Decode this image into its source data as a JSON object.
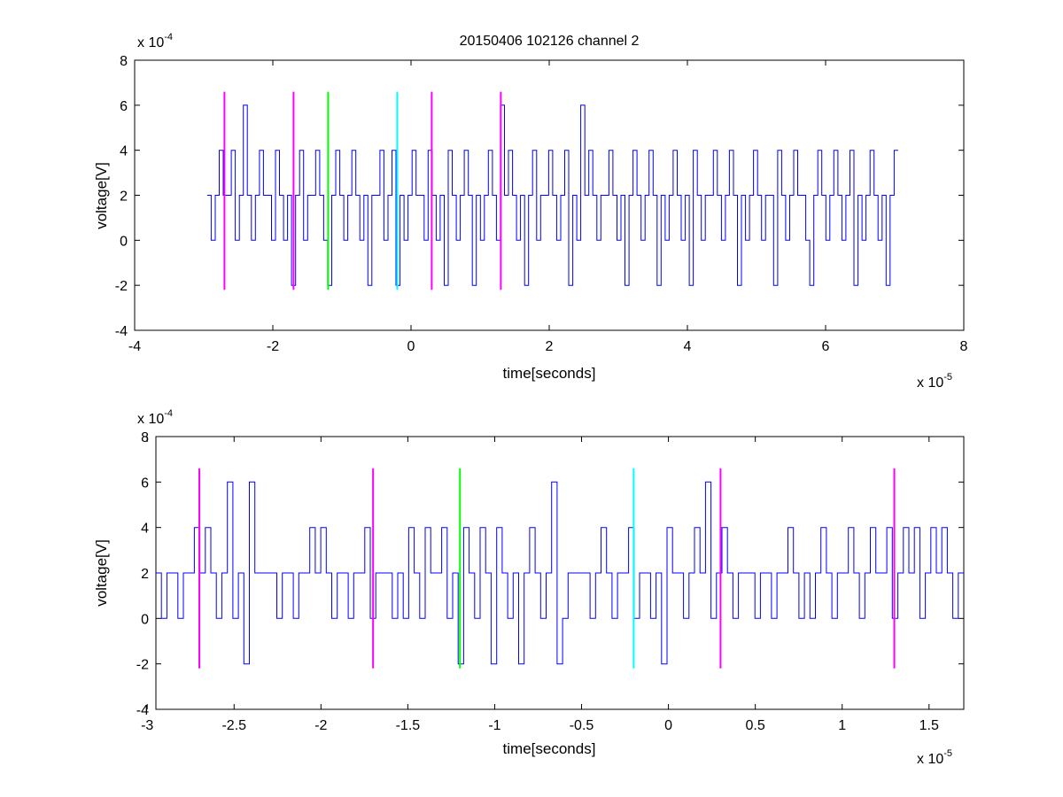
{
  "title": "20150406 102126 channel 2",
  "colors": {
    "signal": "#0000FF",
    "magenta": "#FF00FF",
    "green": "#00FF00",
    "cyan": "#00FFFF"
  },
  "chart_data": [
    {
      "type": "line",
      "xlabel": "time[seconds]",
      "ylabel": "voltage[V]",
      "x_multiplier_label": "x 10",
      "x_multiplier_exponent": "-5",
      "y_multiplier_label": "x 10",
      "y_multiplier_exponent": "-4",
      "xlim": [
        -4,
        8
      ],
      "ylim": [
        -4,
        8
      ],
      "grid": false,
      "xticks": [
        -4,
        -2,
        0,
        2,
        4,
        6,
        8
      ],
      "xtick_labels": [
        "-4",
        "-2",
        "0",
        "2",
        "4",
        "6",
        "8"
      ],
      "yticks": [
        -4,
        -2,
        0,
        2,
        4,
        6,
        8
      ],
      "ytick_labels": [
        "-4",
        "-2",
        "0",
        "2",
        "4",
        "6",
        "8"
      ],
      "series": [
        {
          "color": "#0000FF",
          "note_units": "x in 1e-5 s, y in 1e-4 V",
          "x_start": -2.95,
          "x_end": 7.05,
          "levels": [
            -2,
            0,
            2,
            4,
            6
          ],
          "values": [
            2,
            0,
            2,
            4,
            2,
            2,
            4,
            0,
            2,
            6,
            2,
            0,
            2,
            4,
            2,
            2,
            0,
            4,
            2,
            0,
            2,
            -2,
            2,
            4,
            0,
            2,
            2,
            4,
            2,
            0,
            -2,
            2,
            4,
            2,
            0,
            2,
            4,
            2,
            0,
            2,
            -2,
            2,
            2,
            4,
            0,
            2,
            4,
            -2,
            2,
            0,
            2,
            4,
            2,
            2,
            0,
            4,
            2,
            0,
            2,
            -2,
            4,
            2,
            0,
            2,
            4,
            2,
            -2,
            2,
            0,
            2,
            4,
            2,
            0,
            6,
            2,
            4,
            2,
            0,
            2,
            -2,
            2,
            4,
            0,
            2,
            2,
            4,
            2,
            0,
            2,
            4,
            -2,
            2,
            0,
            6,
            2,
            4,
            2,
            0,
            2,
            2,
            4,
            2,
            0,
            2,
            -2,
            2,
            4,
            2,
            0,
            2,
            4,
            2,
            -2,
            2,
            0,
            2,
            4,
            2,
            0,
            2,
            -2,
            4,
            2,
            0,
            2,
            2,
            4,
            2,
            0,
            2,
            4,
            2,
            -2,
            2,
            0,
            2,
            4,
            2,
            0,
            2,
            2,
            -2,
            4,
            2,
            0,
            2,
            4,
            2,
            2,
            0,
            -2,
            2,
            4,
            2,
            0,
            2,
            4,
            2,
            0,
            2,
            4,
            -2,
            2,
            0,
            2,
            4,
            2,
            0,
            2,
            -2,
            2,
            4
          ]
        }
      ],
      "markers": [
        {
          "x": -2.7,
          "color": "magenta"
        },
        {
          "x": -1.7,
          "color": "magenta"
        },
        {
          "x": -1.2,
          "color": "green"
        },
        {
          "x": -0.2,
          "color": "cyan"
        },
        {
          "x": 0.3,
          "color": "magenta"
        },
        {
          "x": 1.3,
          "color": "magenta"
        }
      ],
      "marker_yrange": [
        -2.2,
        6.6
      ]
    },
    {
      "type": "line",
      "xlabel": "time[seconds]",
      "ylabel": "voltage[V]",
      "x_multiplier_label": "x 10",
      "x_multiplier_exponent": "-5",
      "y_multiplier_label": "x 10",
      "y_multiplier_exponent": "-4",
      "xlim": [
        -2.95,
        1.7
      ],
      "ylim": [
        -4,
        8
      ],
      "grid": false,
      "xticks": [
        -3,
        -2.5,
        -2,
        -1.5,
        -1,
        -0.5,
        0,
        0.5,
        1,
        1.5
      ],
      "xtick_labels": [
        "-3",
        "-2.5",
        "-2",
        "-1.5",
        "-1",
        "-0.5",
        "0",
        "0.5",
        "1",
        "1.5"
      ],
      "yticks": [
        -4,
        -2,
        0,
        2,
        4,
        6,
        8
      ],
      "ytick_labels": [
        "-4",
        "-2",
        "0",
        "2",
        "4",
        "6",
        "8"
      ],
      "series": [
        {
          "color": "#0000FF",
          "note_units": "x in 1e-5 s, y in 1e-4 V",
          "x_start": -2.95,
          "x_end": 1.7,
          "levels": [
            -2,
            0,
            2,
            4,
            6
          ],
          "values": [
            2,
            0,
            2,
            2,
            0,
            2,
            2,
            4,
            2,
            4,
            2,
            0,
            2,
            6,
            0,
            2,
            -2,
            6,
            2,
            2,
            2,
            2,
            0,
            2,
            2,
            0,
            2,
            2,
            4,
            2,
            4,
            2,
            0,
            2,
            2,
            0,
            2,
            2,
            4,
            0,
            2,
            2,
            2,
            0,
            2,
            0,
            4,
            2,
            0,
            4,
            2,
            2,
            4,
            0,
            2,
            -2,
            4,
            2,
            0,
            4,
            2,
            -2,
            4,
            2,
            0,
            2,
            -2,
            2,
            4,
            2,
            0,
            2,
            6,
            -2,
            0,
            2,
            2,
            2,
            2,
            0,
            2,
            4,
            2,
            0,
            2,
            2,
            4,
            0,
            2,
            2,
            0,
            2,
            -2,
            4,
            2,
            2,
            0,
            2,
            4,
            2,
            6,
            0,
            2,
            4,
            2,
            0,
            2,
            2,
            2,
            0,
            2,
            2,
            0,
            2,
            2,
            4,
            2,
            0,
            2,
            0,
            2,
            4,
            2,
            0,
            2,
            2,
            4,
            2,
            0,
            2,
            4,
            2,
            2,
            4,
            0,
            2,
            4,
            2,
            4,
            0,
            2,
            4,
            2,
            4,
            2,
            0,
            2
          ]
        }
      ],
      "markers": [
        {
          "x": -2.7,
          "color": "magenta"
        },
        {
          "x": -1.7,
          "color": "magenta"
        },
        {
          "x": -1.2,
          "color": "green"
        },
        {
          "x": -0.2,
          "color": "cyan"
        },
        {
          "x": 0.3,
          "color": "magenta"
        },
        {
          "x": 1.3,
          "color": "magenta"
        }
      ],
      "marker_yrange": [
        -2.2,
        6.6
      ]
    }
  ]
}
